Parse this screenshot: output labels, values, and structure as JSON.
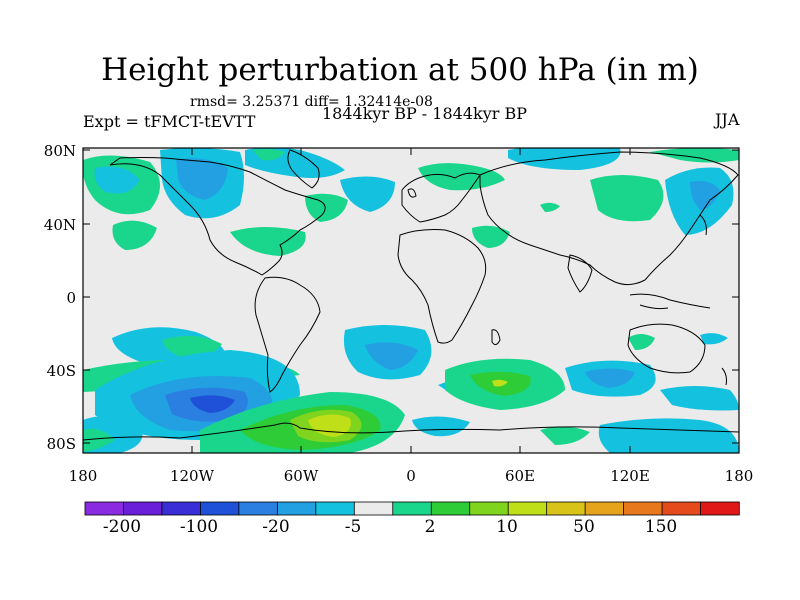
{
  "title": "Height perturbation at 500 hPa (in m)",
  "stats": "rmsd= 3.25371 diff= 1.32414e-08",
  "period": "1844kyr BP - 1844kyr BP",
  "experiment": "Expt = tFMCT-tEVTT",
  "season": "JJA",
  "lat_labels": [
    "80N",
    "40N",
    "0",
    "40S",
    "80S"
  ],
  "lon_labels": [
    "180",
    "120W",
    "60W",
    "0",
    "60E",
    "120E",
    "180"
  ],
  "colorbar": {
    "labels": [
      "-200",
      "-100",
      "-20",
      "-5",
      "2",
      "10",
      "50",
      "150"
    ],
    "colors": [
      "#8a2be2",
      "#6a1fd8",
      "#3a2fd6",
      "#1f50d8",
      "#2a7fe0",
      "#22a0e2",
      "#14c2e0",
      "#ebebeb",
      "#1ad68c",
      "#2ecc36",
      "#7fd41e",
      "#bfe018",
      "#d8c418",
      "#e6a41c",
      "#e8781c",
      "#e54a1c",
      "#e01818"
    ]
  },
  "colors": {
    "background": "#ebebeb",
    "green": "#1ad68c",
    "cyan": "#14c2e0",
    "light_blue": "#22a0e2",
    "blue": "#2a7fe0",
    "deep_blue": "#1f50d8",
    "bright_green": "#2ecc36",
    "yellow_green": "#bfe018"
  }
}
